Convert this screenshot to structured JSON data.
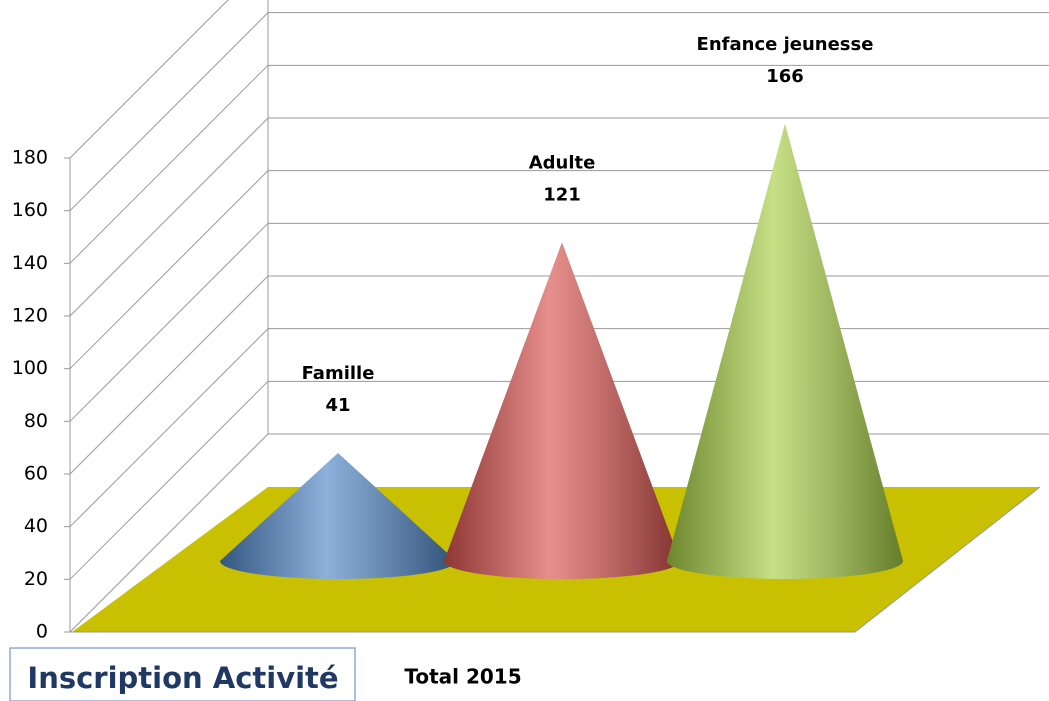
{
  "chart_data": {
    "type": "cone",
    "title": "Inscription Activité",
    "categories": [
      "Total 2015"
    ],
    "series": [
      {
        "name": "Famille",
        "color": "#4f86c6",
        "values": [
          41
        ]
      },
      {
        "name": "Adulte",
        "color": "#d9534f",
        "values": [
          121
        ]
      },
      {
        "name": "Enfance jeunesse",
        "color": "#a8cf45",
        "values": [
          166
        ]
      }
    ],
    "ylim": [
      0,
      180
    ],
    "yticks": [
      0,
      20,
      40,
      60,
      80,
      100,
      120,
      140,
      160,
      180
    ],
    "grid": true,
    "floor_color": "#c8c000"
  }
}
